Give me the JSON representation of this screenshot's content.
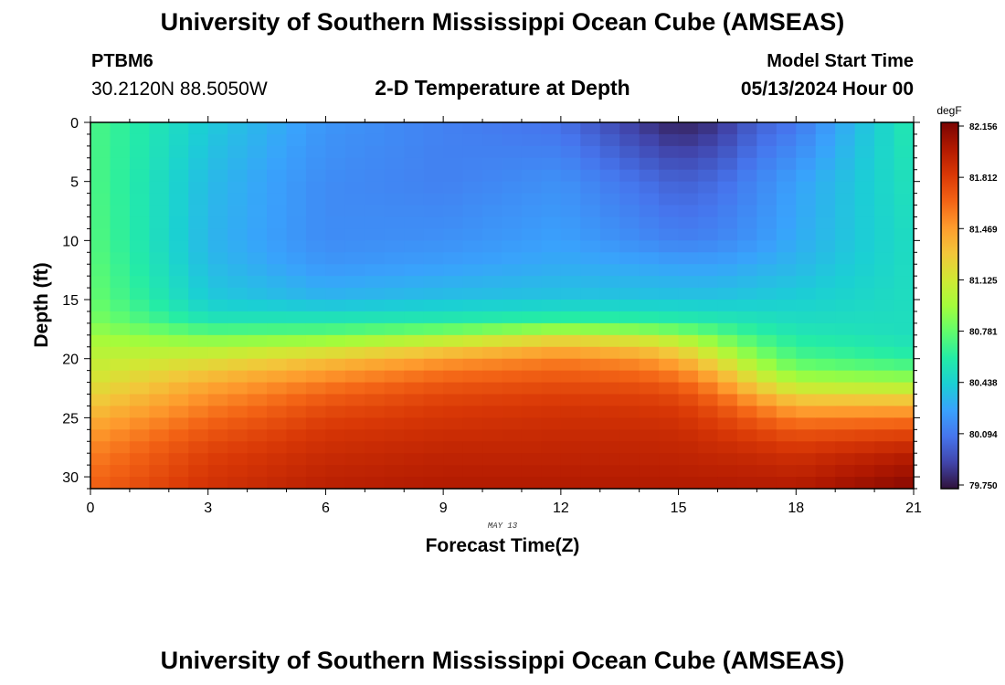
{
  "header": {
    "title": "University of Southern Mississippi Ocean Cube (AMSEAS)",
    "station": "PTBM6",
    "coords": "30.2120N  88.5050W",
    "subtitle": "2-D Temperature at Depth",
    "model_start_label": "Model Start Time",
    "model_start_value": "05/13/2024 Hour 00"
  },
  "footer": {
    "title": "University of Southern Mississippi Ocean Cube (AMSEAS)"
  },
  "chart_data": {
    "type": "heatmap",
    "title": "2-D Temperature at Depth",
    "xlabel": "Forecast Time(Z)",
    "ylabel": "Depth (ft)",
    "date_label": "MAY 13",
    "xlim": [
      0,
      21
    ],
    "ylim": [
      0,
      31
    ],
    "x_ticks": [
      0,
      3,
      6,
      9,
      12,
      15,
      18,
      21
    ],
    "y_ticks": [
      0,
      5,
      10,
      15,
      20,
      25,
      30
    ],
    "colorbar": {
      "unit": "degF",
      "min": 79.75,
      "max": 82.156,
      "tick_labels": [
        "82.156",
        "81.812",
        "81.469",
        "81.125",
        "80.781",
        "80.438",
        "80.094",
        "79.750"
      ],
      "colormap": [
        "#30123b",
        "#4145ab",
        "#4675ed",
        "#39a2fc",
        "#1bcfd4",
        "#24eca6",
        "#61fc6c",
        "#a4fc3b",
        "#d1e834",
        "#f3c63a",
        "#fe9b2d",
        "#f36315",
        "#d93806",
        "#b11901",
        "#7a0402"
      ]
    },
    "profiles": {
      "depths": [
        0,
        5,
        10,
        12,
        15,
        17,
        18,
        20,
        22,
        24,
        26,
        28,
        31
      ],
      "times": [
        0,
        3,
        6,
        9,
        12,
        14,
        15,
        16,
        17,
        18,
        21
      ],
      "values": [
        [
          80.72,
          80.73,
          80.75,
          80.77,
          80.8,
          80.86,
          80.95,
          81.05,
          81.15,
          81.3,
          81.45,
          81.55,
          81.65
        ],
        [
          80.42,
          80.36,
          80.34,
          80.36,
          80.42,
          80.58,
          80.82,
          81.15,
          81.4,
          81.55,
          81.68,
          81.78,
          81.85
        ],
        [
          80.22,
          80.18,
          80.18,
          80.22,
          80.34,
          80.6,
          80.82,
          81.3,
          81.56,
          81.72,
          81.82,
          81.88,
          81.95
        ],
        [
          80.14,
          80.14,
          80.2,
          80.25,
          80.38,
          80.62,
          80.95,
          81.45,
          81.68,
          81.8,
          81.86,
          81.92,
          81.98
        ],
        [
          80.08,
          80.2,
          80.26,
          80.3,
          80.4,
          80.68,
          81.15,
          81.55,
          81.72,
          81.83,
          81.88,
          81.92,
          81.98
        ],
        [
          79.88,
          80.08,
          80.18,
          80.28,
          80.4,
          80.66,
          81.05,
          81.48,
          81.7,
          81.82,
          81.88,
          81.92,
          81.98
        ],
        [
          79.8,
          80.02,
          80.14,
          80.26,
          80.4,
          80.63,
          80.95,
          81.38,
          81.65,
          81.8,
          81.87,
          81.92,
          81.98
        ],
        [
          79.86,
          80.06,
          80.16,
          80.26,
          80.4,
          80.6,
          80.8,
          81.15,
          81.48,
          81.7,
          81.82,
          81.9,
          81.98
        ],
        [
          80.02,
          80.16,
          80.22,
          80.3,
          80.42,
          80.56,
          80.66,
          80.9,
          81.2,
          81.55,
          81.75,
          81.88,
          81.98
        ],
        [
          80.1,
          80.26,
          80.3,
          80.34,
          80.44,
          80.52,
          80.58,
          80.72,
          81.0,
          81.4,
          81.68,
          81.85,
          81.98
        ],
        [
          80.6,
          80.55,
          80.52,
          80.52,
          80.52,
          80.52,
          80.52,
          80.62,
          80.95,
          81.4,
          81.72,
          81.95,
          82.12
        ]
      ]
    }
  }
}
